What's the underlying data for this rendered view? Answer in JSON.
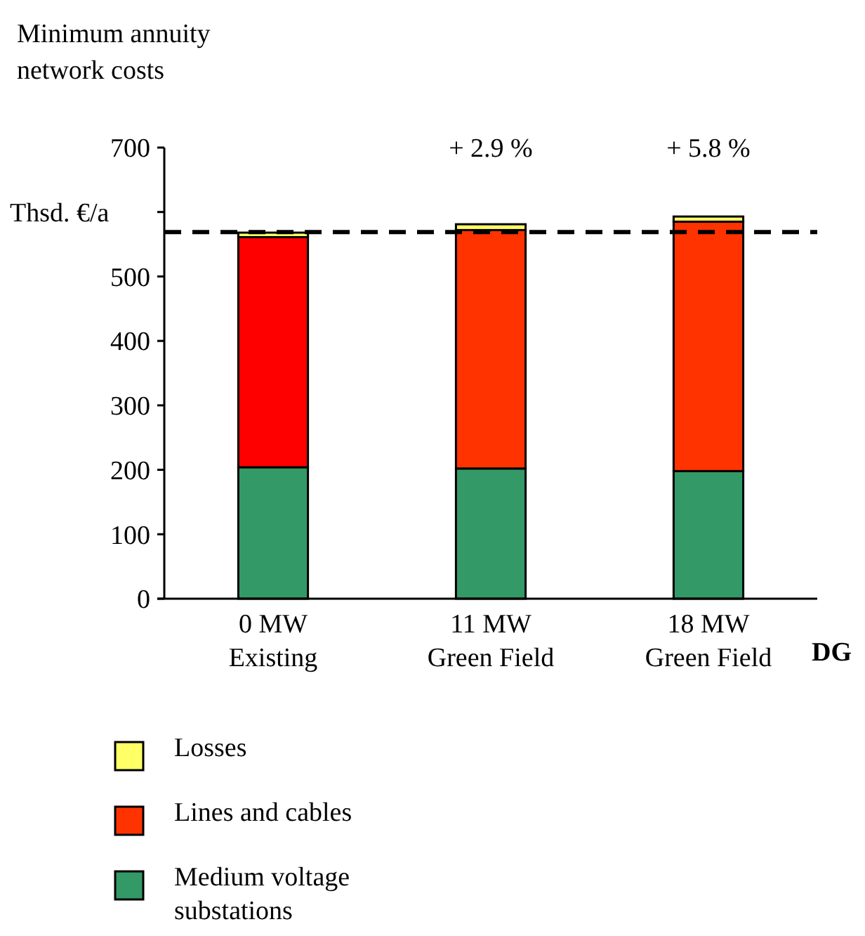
{
  "chart_data": {
    "type": "bar",
    "stacked": true,
    "title": "Minimum annuity\nnetwork costs",
    "ylabel": "Thsd. €/a",
    "xlabel": "DG",
    "categories": [
      "0 MW\nExisting",
      "11 MW\nGreen Field",
      "18 MW\nGreen Field"
    ],
    "series": [
      {
        "name": "Medium voltage\nsubstations",
        "color": "#339966",
        "values": [
          204,
          202,
          198
        ]
      },
      {
        "name": "Lines and cables",
        "color": "#ff3300",
        "colors": [
          "#ff0000",
          "#ff3300",
          "#ff3300"
        ],
        "values": [
          357,
          370,
          387
        ]
      },
      {
        "name": "Losses",
        "color": "#ffff66",
        "values": [
          7,
          9,
          8
        ]
      }
    ],
    "ylim": [
      0,
      700
    ],
    "yticks": [
      0,
      100,
      200,
      300,
      400,
      500,
      {
        "value": 600,
        "label": null
      },
      700
    ],
    "ref_lines": [
      {
        "axis": "y",
        "value": 569,
        "color": "#000000",
        "line_style": "dashed"
      }
    ],
    "annotations": [
      "+ 2.9 %",
      "+ 5.8 %"
    ],
    "legend": "bottom left",
    "grid": false
  }
}
